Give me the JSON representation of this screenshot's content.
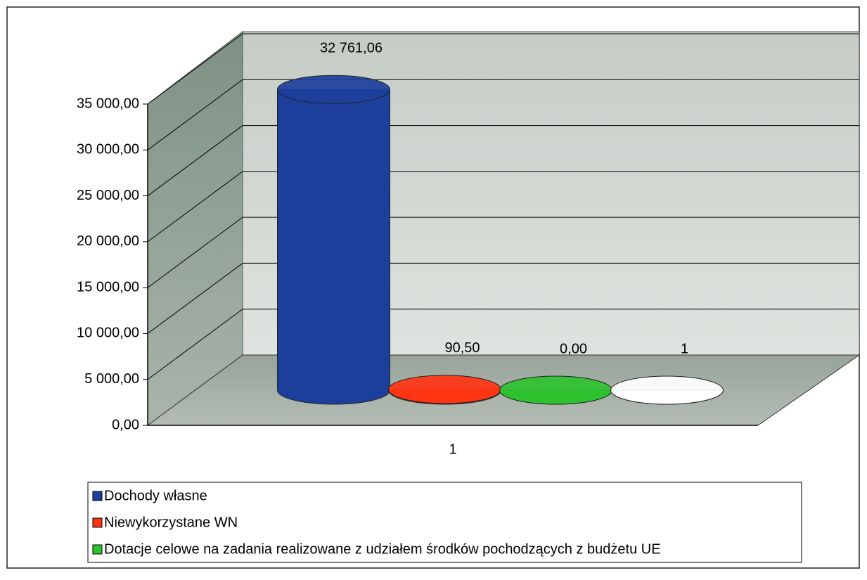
{
  "chart_data": {
    "type": "bar3d_cylinder",
    "categories": [
      "1"
    ],
    "series": [
      {
        "name": "Dochody własne",
        "color": "#1c3f9c",
        "values": [
          32761.06
        ],
        "value_labels": [
          "32 761,06"
        ]
      },
      {
        "name": "Niewykorzystane WN",
        "color": "#ff3412",
        "values": [
          90.5
        ],
        "value_labels": [
          "90,50"
        ]
      },
      {
        "name": "Dotacje celowe na zadania realizowane z udziałem środków pochodzących z budżetu UE",
        "color": "#2fc22f",
        "values": [
          0
        ],
        "value_labels": [
          "0,00"
        ]
      },
      {
        "color": "#ffffff",
        "values": [
          1
        ],
        "value_labels": [
          "1"
        ]
      }
    ],
    "ylim": [
      0,
      35000
    ],
    "yticks": [
      {
        "value": 0,
        "label": "0,00"
      },
      {
        "value": 5000,
        "label": "5 000,00"
      },
      {
        "value": 10000,
        "label": "10 000,00"
      },
      {
        "value": 15000,
        "label": "15 000,00"
      },
      {
        "value": 20000,
        "label": "20 000,00"
      },
      {
        "value": 25000,
        "label": "25 000,00"
      },
      {
        "value": 30000,
        "label": "30 000,00"
      },
      {
        "value": 35000,
        "label": "35 000,00"
      }
    ],
    "grid": true
  }
}
